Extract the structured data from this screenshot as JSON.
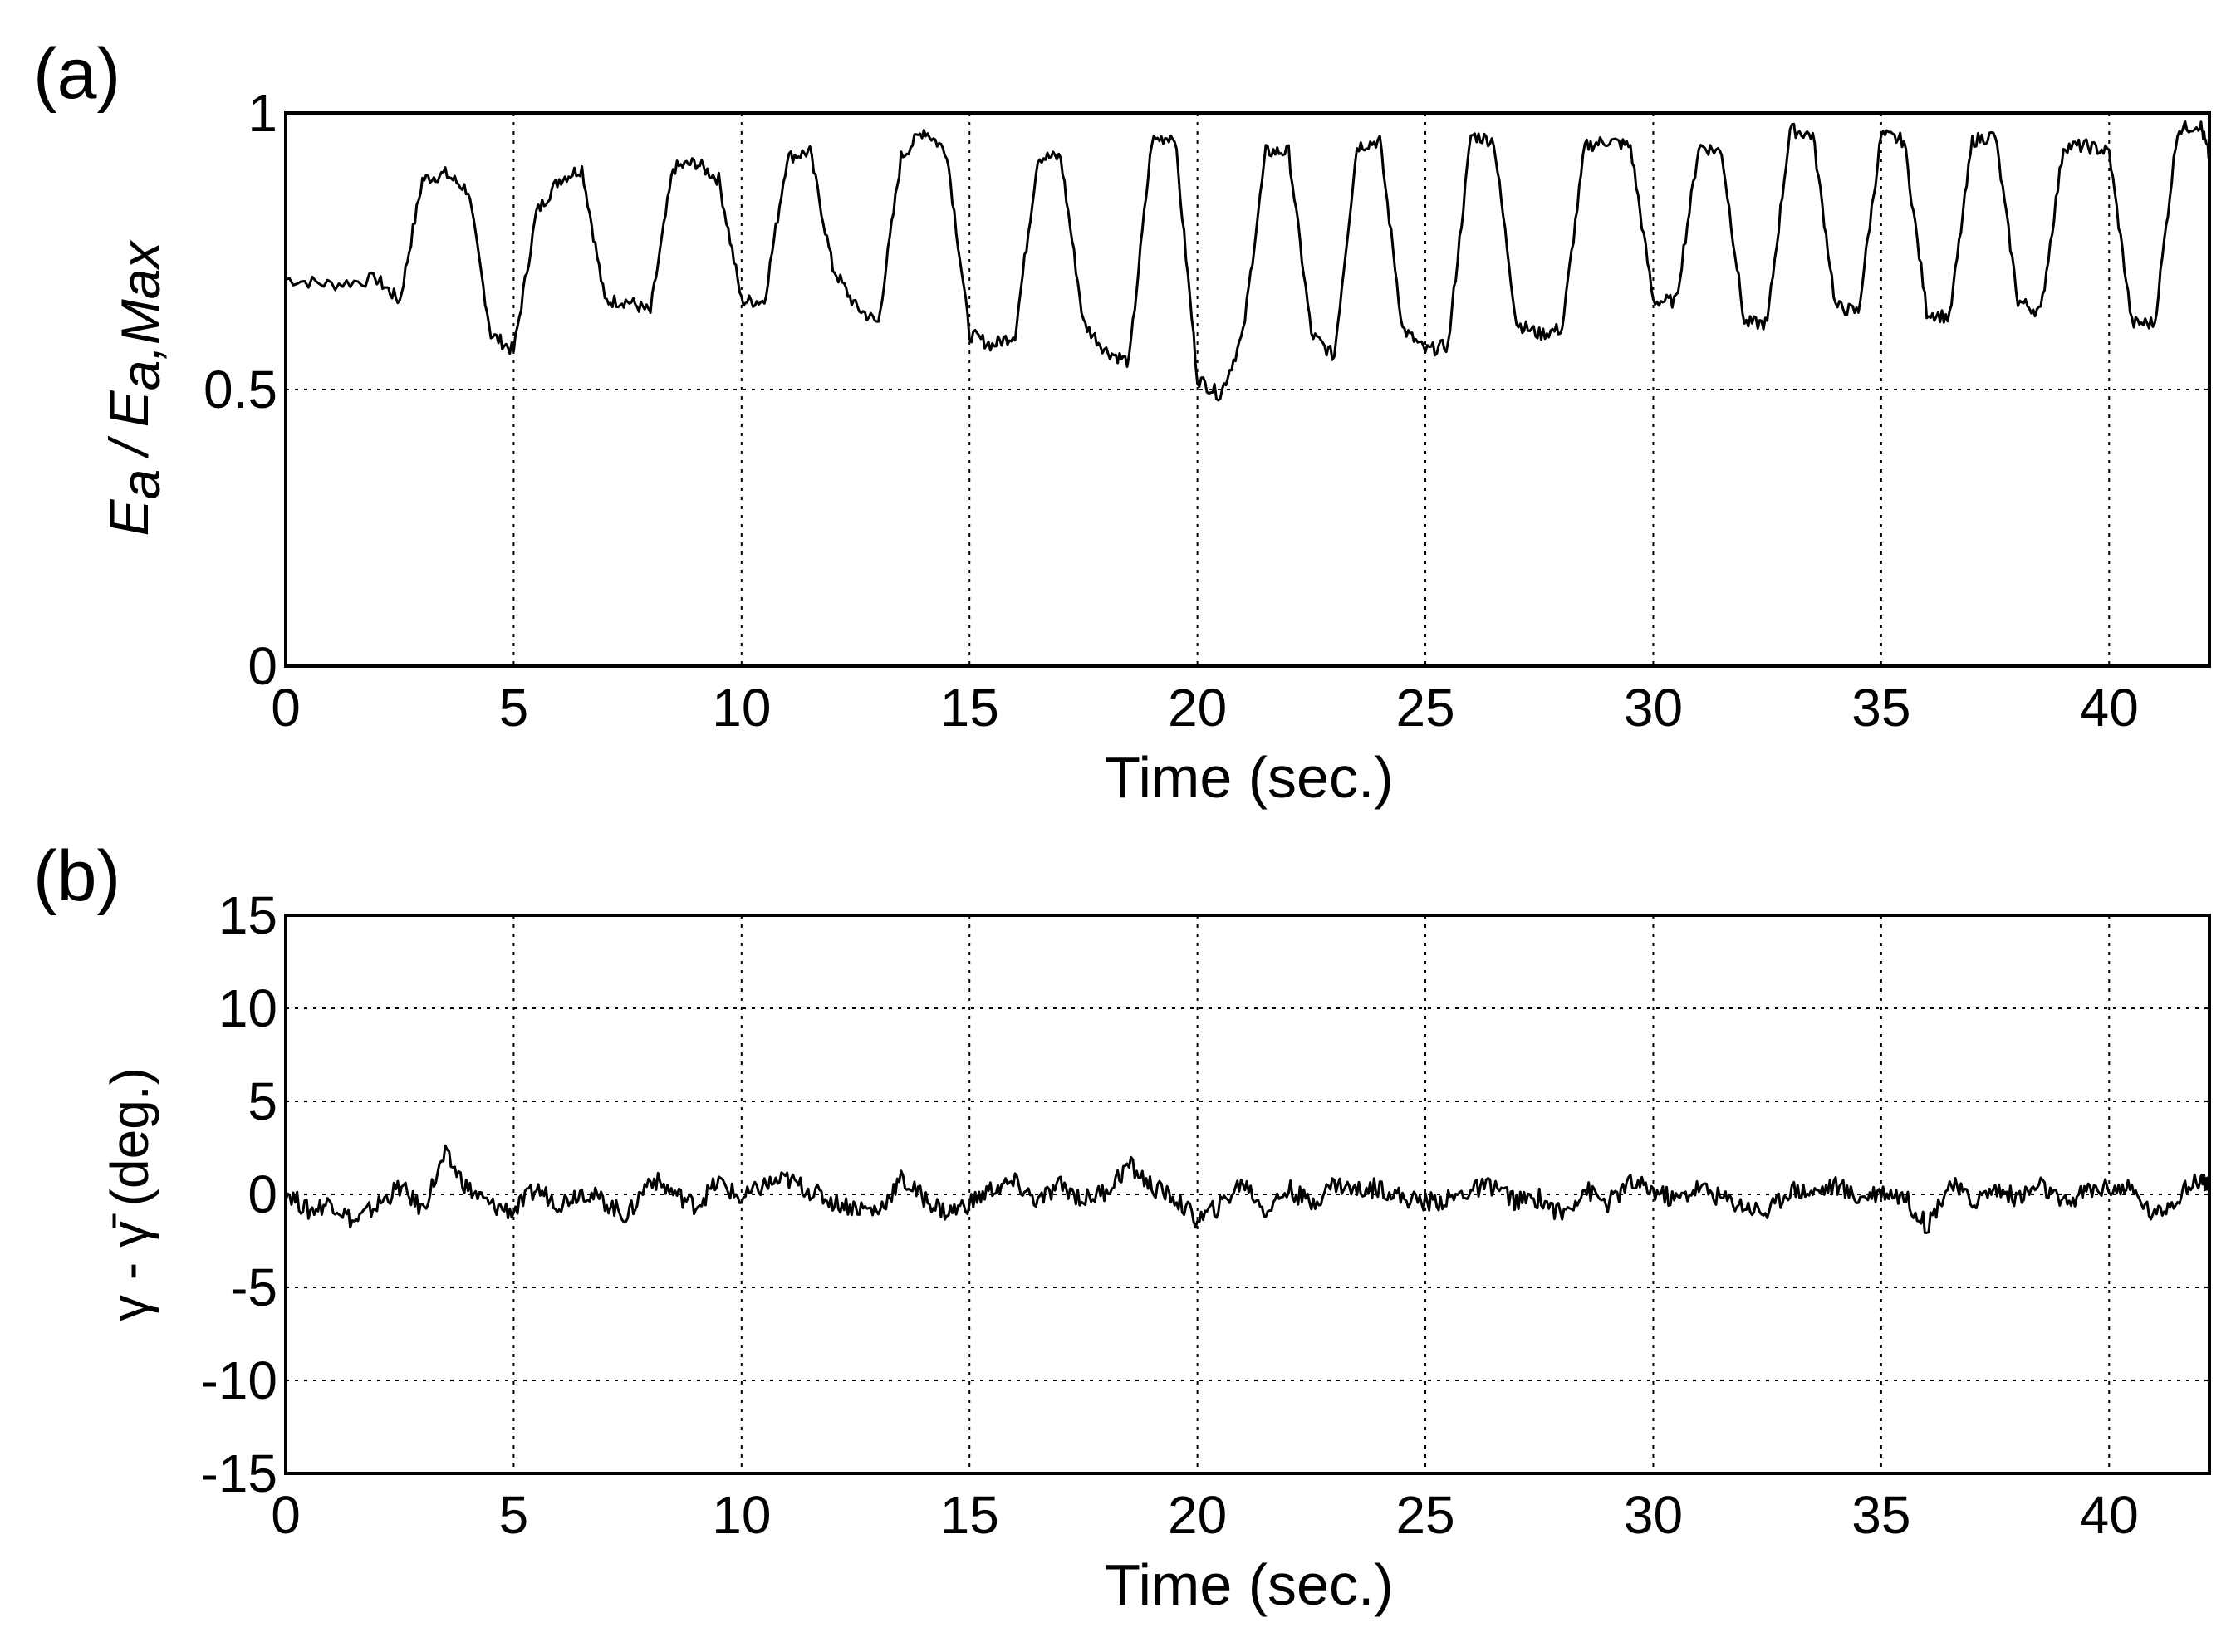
{
  "chart_data": [
    {
      "panel": "(a)",
      "type": "line",
      "xlabel": "Time (sec.)",
      "ylabel": {
        "a": "E",
        "a_sub": "a",
        "sep": "/",
        "b": "E",
        "b_sub": "a,Max"
      },
      "xlim": [
        0,
        42.2
      ],
      "ylim": [
        0,
        1
      ],
      "xticks": [
        "0",
        "5",
        "10",
        "15",
        "20",
        "25",
        "30",
        "35",
        "40"
      ],
      "yticks": [
        "0",
        "0.5",
        "1"
      ],
      "grid": true,
      "series": [
        {
          "x": [
            0,
            1.0,
            2.0,
            2.5,
            3.0,
            3.5,
            4.0,
            4.5,
            5.0,
            5.5,
            6.0,
            6.5,
            7.0,
            7.5,
            8.0,
            8.5,
            9.0,
            9.5,
            10.0,
            10.5,
            11.0,
            11.5,
            12.0,
            12.5,
            13.0,
            13.5,
            14.0,
            14.5,
            15.0,
            15.5,
            16.0,
            16.5,
            17.0,
            17.5,
            18.0,
            18.5,
            19.0,
            19.5,
            20.0,
            20.5,
            21.0,
            21.5,
            22.0,
            22.5,
            23.0,
            23.5,
            24.0,
            24.5,
            25.0,
            25.5,
            26.0,
            26.5,
            27.0,
            27.5,
            28.0,
            28.5,
            29.0,
            29.5,
            30.0,
            30.5,
            31.0,
            31.5,
            32.0,
            32.5,
            33.0,
            33.5,
            34.0,
            34.5,
            35.0,
            35.5,
            36.0,
            36.5,
            37.0,
            37.5,
            38.0,
            38.5,
            39.0,
            39.5,
            40.0,
            40.5,
            41.0,
            41.5,
            42.0,
            42.2
          ],
          "y": [
            0.7,
            0.69,
            0.7,
            0.66,
            0.88,
            0.89,
            0.86,
            0.6,
            0.57,
            0.82,
            0.88,
            0.9,
            0.66,
            0.66,
            0.64,
            0.9,
            0.91,
            0.88,
            0.66,
            0.66,
            0.92,
            0.93,
            0.72,
            0.65,
            0.62,
            0.92,
            0.97,
            0.93,
            0.6,
            0.58,
            0.6,
            0.92,
            0.92,
            0.62,
            0.57,
            0.55,
            0.95,
            0.96,
            0.52,
            0.49,
            0.6,
            0.93,
            0.93,
            0.6,
            0.56,
            0.94,
            0.95,
            0.61,
            0.57,
            0.58,
            0.96,
            0.95,
            0.62,
            0.6,
            0.61,
            0.94,
            0.95,
            0.94,
            0.66,
            0.66,
            0.94,
            0.93,
            0.62,
            0.62,
            0.97,
            0.96,
            0.65,
            0.64,
            0.96,
            0.95,
            0.64,
            0.63,
            0.95,
            0.96,
            0.66,
            0.64,
            0.94,
            0.94,
            0.93,
            0.62,
            0.62,
            0.97,
            0.98,
            0.92
          ]
        }
      ]
    },
    {
      "panel": "(b)",
      "type": "line",
      "xlabel": "Time (sec.)",
      "ylabel": "γ - γ̄ (deg.)",
      "xlim": [
        0,
        42.2
      ],
      "ylim": [
        -15,
        15
      ],
      "xticks": [
        "0",
        "5",
        "10",
        "15",
        "20",
        "25",
        "30",
        "35",
        "40"
      ],
      "yticks": [
        "-15",
        "-10",
        "-5",
        "0",
        "5",
        "10",
        "15"
      ],
      "grid": true,
      "series": [
        {
          "x": [
            0,
            0.5,
            1.0,
            1.5,
            2.0,
            2.5,
            3.0,
            3.5,
            4.0,
            4.5,
            5.0,
            5.5,
            6.0,
            6.5,
            7.0,
            7.5,
            8.0,
            8.5,
            9.0,
            9.5,
            10.0,
            10.5,
            11.0,
            11.5,
            12.0,
            12.5,
            13.0,
            13.5,
            14.0,
            14.5,
            15.0,
            15.5,
            16.0,
            16.5,
            17.0,
            17.5,
            18.0,
            18.5,
            19.0,
            19.5,
            20.0,
            20.5,
            21.0,
            21.5,
            22.0,
            22.5,
            23.0,
            23.5,
            24.0,
            24.5,
            25.0,
            25.5,
            26.0,
            26.5,
            27.0,
            27.5,
            28.0,
            28.5,
            29.0,
            29.5,
            30.0,
            30.5,
            31.0,
            31.5,
            32.0,
            32.5,
            33.0,
            33.5,
            34.0,
            34.5,
            35.0,
            35.5,
            36.0,
            36.5,
            37.0,
            37.5,
            38.0,
            38.5,
            39.0,
            39.5,
            40.0,
            40.5,
            41.0,
            41.5,
            42.0,
            42.2
          ],
          "y": [
            0.2,
            -0.9,
            -0.4,
            -1.5,
            -0.6,
            0.4,
            -0.8,
            2.1,
            0.3,
            -0.6,
            -0.9,
            0.3,
            -0.5,
            0.2,
            -0.4,
            -1.2,
            0.9,
            0.1,
            -0.6,
            0.7,
            -0.3,
            0.5,
            0.8,
            0.2,
            -0.4,
            -0.7,
            -0.9,
            0.8,
            -0.2,
            -1.0,
            -0.5,
            0.3,
            0.6,
            -0.4,
            0.5,
            -0.3,
            0.2,
            1.6,
            0.4,
            -0.2,
            -1.4,
            -0.6,
            0.7,
            -0.9,
            0.3,
            -0.5,
            0.6,
            0.2,
            0.4,
            -0.2,
            -0.4,
            -0.3,
            0.2,
            0.5,
            -0.4,
            -0.2,
            -1.1,
            0.3,
            -0.5,
            0.6,
            0.2,
            -0.3,
            0.4,
            -0.2,
            -0.6,
            -1.0,
            0.3,
            0.1,
            0.5,
            -0.2,
            0.2,
            -0.1,
            -1.7,
            0.6,
            -0.4,
            0.3,
            -0.2,
            0.5,
            -0.6,
            0.2,
            0.4,
            0.2,
            -1.2,
            -0.1,
            0.9,
            0.5
          ]
        }
      ]
    }
  ]
}
